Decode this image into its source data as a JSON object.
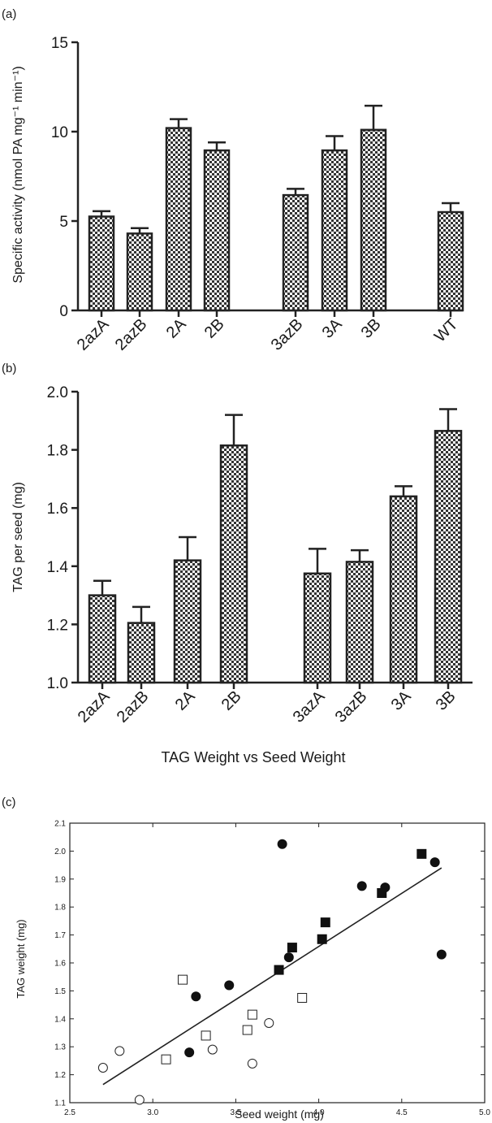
{
  "chart_data": [
    {
      "panel_label": "(a)",
      "type": "bar",
      "categories": [
        "2azA",
        "2azB",
        "2A",
        "2B",
        "3azB",
        "3A",
        "3B",
        "WT"
      ],
      "values": [
        5.25,
        4.3,
        10.2,
        8.95,
        6.45,
        8.95,
        10.1,
        5.5
      ],
      "errors": [
        0.3,
        0.3,
        0.5,
        0.45,
        0.35,
        0.8,
        1.35,
        0.5
      ],
      "title": "",
      "xlabel": "",
      "ylabel": "Specific activity (nmol PA mg⁻¹ min⁻¹)",
      "ylim": [
        0,
        15
      ],
      "yticks": [
        "0",
        "5",
        "10",
        "15"
      ],
      "bar_pattern": "checkered",
      "grid": false
    },
    {
      "panel_label": "(b)",
      "type": "bar",
      "categories": [
        "2azA",
        "2azB",
        "2A",
        "2B",
        "3azA",
        "3azB",
        "3A",
        "3B"
      ],
      "values": [
        1.3,
        1.205,
        1.42,
        1.815,
        1.375,
        1.415,
        1.64,
        1.865
      ],
      "errors": [
        0.05,
        0.055,
        0.08,
        0.105,
        0.085,
        0.04,
        0.035,
        0.075
      ],
      "title": "",
      "xlabel": "",
      "ylabel": "TAG per seed (mg)",
      "ylim": [
        1.0,
        2.0
      ],
      "yticks": [
        "1.0",
        "1.2",
        "1.4",
        "1.6",
        "1.8",
        "2.0"
      ],
      "bar_pattern": "checkered",
      "grid": false
    },
    {
      "panel_label": "(c)",
      "type": "scatter",
      "title": "TAG Weight vs Seed Weight",
      "xlabel": "Seed weight (mg)",
      "ylabel": "TAG weight (mg)",
      "xlim": [
        2.5,
        5.0
      ],
      "ylim": [
        1.1,
        2.1
      ],
      "xticks": [
        "2.5",
        "3.0",
        "3.5",
        "4.0",
        "4.5",
        "5.0"
      ],
      "yticks": [
        "1.1",
        "1.2",
        "1.3",
        "1.4",
        "1.5",
        "1.6",
        "1.7",
        "1.8",
        "1.9",
        "2.0",
        "2.1"
      ],
      "series": [
        {
          "marker": "open-circle",
          "x": [
            2.7,
            2.8,
            2.92,
            3.36,
            3.6,
            3.7
          ],
          "y": [
            1.225,
            1.285,
            1.11,
            1.29,
            1.24,
            1.385
          ]
        },
        {
          "marker": "open-square",
          "x": [
            3.08,
            3.18,
            3.32,
            3.57,
            3.6,
            3.9
          ],
          "y": [
            1.255,
            1.54,
            1.34,
            1.36,
            1.415,
            1.475
          ]
        },
        {
          "marker": "filled-circle",
          "x": [
            3.22,
            3.26,
            3.46,
            3.78,
            3.82,
            4.26,
            4.4,
            4.7,
            4.74
          ],
          "y": [
            1.28,
            1.48,
            1.52,
            2.025,
            1.62,
            1.875,
            1.87,
            1.96,
            1.63
          ]
        },
        {
          "marker": "filled-square",
          "x": [
            3.76,
            3.84,
            4.02,
            4.04,
            4.38,
            4.62
          ],
          "y": [
            1.575,
            1.655,
            1.685,
            1.745,
            1.85,
            1.99
          ]
        }
      ],
      "fit_line": {
        "x": [
          2.7,
          4.74
        ],
        "y": [
          1.165,
          1.94
        ]
      },
      "grid": false
    }
  ]
}
